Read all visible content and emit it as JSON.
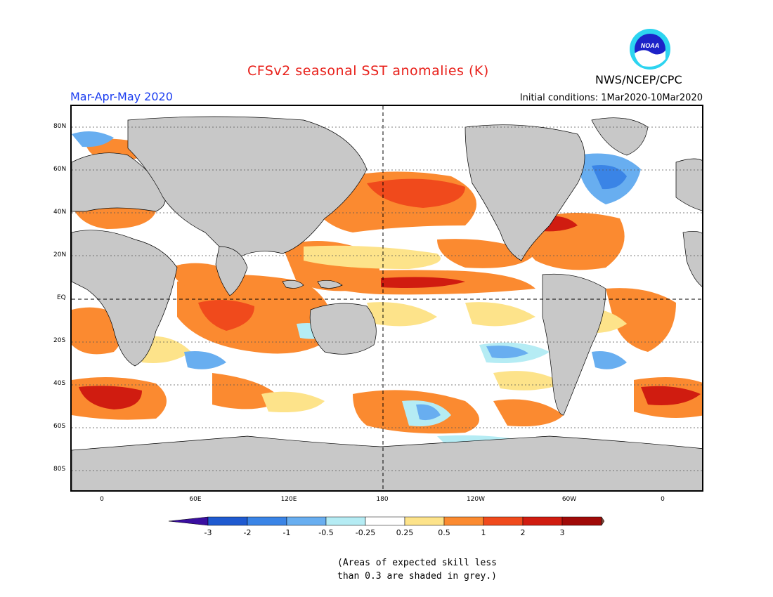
{
  "title": "CFSv2 seasonal SST anomalies (K)",
  "season": "Mar-Apr-May 2020",
  "agency": "NWS/NCEP/CPC",
  "initial_conditions": "Initial conditions: 1Mar2020-10Mar2020",
  "logo_text": "NOAA",
  "latitude_labels": [
    "80N",
    "60N",
    "40N",
    "20N",
    "EQ",
    "20S",
    "40S",
    "60S",
    "80S"
  ],
  "longitude_labels": [
    "0",
    "60E",
    "120E",
    "180",
    "120W",
    "60W",
    "0"
  ],
  "colorbar": {
    "ticks": [
      "-3",
      "-2",
      "-1",
      "-0.5",
      "-0.25",
      "0.25",
      "0.5",
      "1",
      "2",
      "3"
    ],
    "colors": [
      "#3a0fa0",
      "#1f5ad0",
      "#3a84e6",
      "#68aef0",
      "#b5ecf4",
      "#ffffff",
      "#fde38a",
      "#fb8a30",
      "#f04a1c",
      "#d01c10",
      "#a00a08",
      "#7a4a3a"
    ]
  },
  "note_lines": [
    "(Areas of expected skill less",
    "than 0.3 are shaded in grey.)"
  ],
  "map_colors": {
    "land": "#c8c8c8",
    "ocean_neutral": "#ffffff",
    "warm_light": "#fde38a",
    "warm_mid": "#fb8a30",
    "warm_strong": "#f04a1c",
    "warm_extreme": "#d01c10",
    "cool_light": "#b5ecf4",
    "cool_mid": "#68aef0",
    "cool_strong": "#3a84e6"
  }
}
